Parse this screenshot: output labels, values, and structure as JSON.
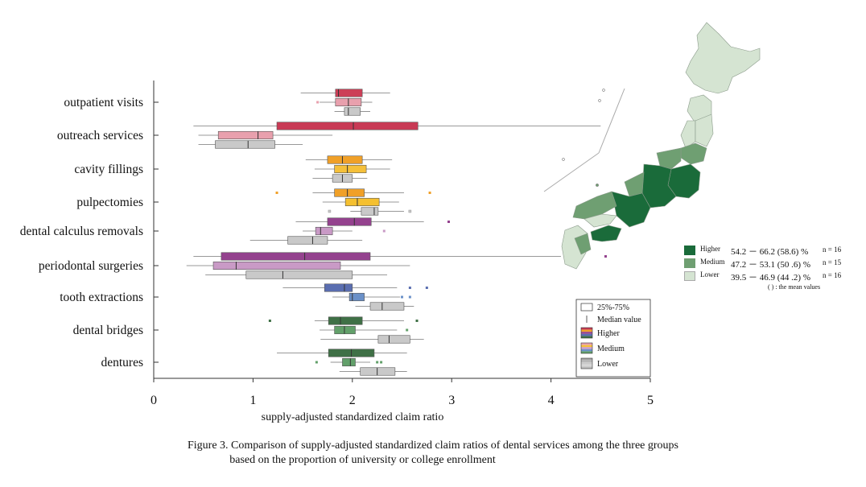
{
  "chart_data": {
    "type": "boxplot",
    "xlabel": "supply-adjusted standardized claim ratio",
    "xlim": [
      0,
      5
    ],
    "xticks": [
      0,
      1,
      2,
      3,
      4,
      5
    ],
    "groups": [
      {
        "name": "Higher"
      },
      {
        "name": "Medium"
      },
      {
        "name": "Lower"
      }
    ],
    "categories": [
      {
        "label": "outpatient visits",
        "colors": [
          "#cc3f57",
          "#e8a0ad",
          "#c9c9c9"
        ],
        "boxes": [
          {
            "wlo": 1.48,
            "q1": 1.83,
            "med": 1.86,
            "q3": 2.1,
            "whi": 2.38,
            "out": []
          },
          {
            "wlo": 1.67,
            "q1": 1.83,
            "med": 1.96,
            "q3": 2.09,
            "whi": 2.2,
            "out": [
              1.65
            ]
          },
          {
            "wlo": 1.82,
            "q1": 1.92,
            "med": 1.96,
            "q3": 2.08,
            "whi": 2.18,
            "out": []
          }
        ]
      },
      {
        "label": "outreach services",
        "colors": [
          "#c83a55",
          "#e8a0ad",
          "#c9c9c9"
        ],
        "boxes": [
          {
            "wlo": 0.4,
            "q1": 1.24,
            "med": 2.01,
            "q3": 2.66,
            "whi": 4.5,
            "out": []
          },
          {
            "wlo": 0.45,
            "q1": 0.65,
            "med": 1.05,
            "q3": 1.2,
            "whi": 1.8,
            "out": []
          },
          {
            "wlo": 0.45,
            "q1": 0.62,
            "med": 0.95,
            "q3": 1.22,
            "whi": 1.5,
            "out": []
          }
        ]
      },
      {
        "label": "cavity fillings",
        "colors": [
          "#f0a028",
          "#f5c03a",
          "#c9c9c9"
        ],
        "boxes": [
          {
            "wlo": 1.53,
            "q1": 1.75,
            "med": 1.9,
            "q3": 2.1,
            "whi": 2.4,
            "out": []
          },
          {
            "wlo": 1.62,
            "q1": 1.82,
            "med": 1.95,
            "q3": 2.14,
            "whi": 2.38,
            "out": []
          },
          {
            "wlo": 1.6,
            "q1": 1.8,
            "med": 1.9,
            "q3": 2.0,
            "whi": 2.15,
            "out": []
          }
        ]
      },
      {
        "label": "pulpectomies",
        "colors": [
          "#f0a028",
          "#f5c030",
          "#c9c9c9"
        ],
        "boxes": [
          {
            "wlo": 1.6,
            "q1": 1.82,
            "med": 1.95,
            "q3": 2.12,
            "whi": 2.52,
            "out": [
              1.24,
              2.78
            ]
          },
          {
            "wlo": 1.7,
            "q1": 1.93,
            "med": 2.05,
            "q3": 2.27,
            "whi": 2.47,
            "out": []
          },
          {
            "wlo": 1.98,
            "q1": 2.09,
            "med": 2.22,
            "q3": 2.26,
            "whi": 2.52,
            "out": [
              1.77,
              2.58
            ]
          }
        ]
      },
      {
        "label": "dental calculus removals",
        "colors": [
          "#94428e",
          "#c99ac6",
          "#c9c9c9"
        ],
        "boxes": [
          {
            "wlo": 1.43,
            "q1": 1.75,
            "med": 2.02,
            "q3": 2.19,
            "whi": 2.72,
            "out": [
              2.97
            ]
          },
          {
            "wlo": 1.5,
            "q1": 1.63,
            "med": 1.68,
            "q3": 1.8,
            "whi": 2.0,
            "out": [
              2.32
            ]
          },
          {
            "wlo": 0.97,
            "q1": 1.35,
            "med": 1.6,
            "q3": 1.75,
            "whi": 2.1,
            "out": []
          }
        ]
      },
      {
        "label": "periodontal surgeries",
        "colors": [
          "#94428e",
          "#c99ac6",
          "#c9c9c9"
        ],
        "boxes": [
          {
            "wlo": 0.4,
            "q1": 0.68,
            "med": 1.52,
            "q3": 2.18,
            "whi": 4.1,
            "out": [
              4.55
            ]
          },
          {
            "wlo": 0.33,
            "q1": 0.6,
            "med": 0.83,
            "q3": 1.88,
            "whi": 2.58,
            "out": []
          },
          {
            "wlo": 0.52,
            "q1": 0.93,
            "med": 1.3,
            "q3": 2.0,
            "whi": 2.35,
            "out": []
          }
        ]
      },
      {
        "label": "tooth extractions",
        "colors": [
          "#5a6eb0",
          "#6a90c8",
          "#c9c9c9"
        ],
        "boxes": [
          {
            "wlo": 1.3,
            "q1": 1.72,
            "med": 1.92,
            "q3": 2.0,
            "whi": 2.45,
            "out": [
              2.58,
              2.75
            ]
          },
          {
            "wlo": 1.8,
            "q1": 1.97,
            "med": 2.0,
            "q3": 2.12,
            "whi": 2.48,
            "out": [
              2.5,
              2.58
            ]
          },
          {
            "wlo": 2.03,
            "q1": 2.18,
            "med": 2.3,
            "q3": 2.52,
            "whi": 2.62,
            "out": []
          }
        ]
      },
      {
        "label": "dental bridges",
        "colors": [
          "#3f7046",
          "#62a06a",
          "#c9c9c9"
        ],
        "boxes": [
          {
            "wlo": 1.62,
            "q1": 1.76,
            "med": 1.88,
            "q3": 2.1,
            "whi": 2.52,
            "out": [
              1.17,
              2.65
            ]
          },
          {
            "wlo": 1.67,
            "q1": 1.82,
            "med": 1.92,
            "q3": 2.03,
            "whi": 2.45,
            "out": [
              2.55
            ]
          },
          {
            "wlo": 1.68,
            "q1": 2.26,
            "med": 2.37,
            "q3": 2.58,
            "whi": 2.72,
            "out": []
          }
        ]
      },
      {
        "label": "dentures",
        "colors": [
          "#3f7046",
          "#62a06a",
          "#c9c9c9"
        ],
        "boxes": [
          {
            "wlo": 1.24,
            "q1": 1.76,
            "med": 1.99,
            "q3": 2.22,
            "whi": 2.55,
            "out": []
          },
          {
            "wlo": 1.78,
            "q1": 1.9,
            "med": 1.98,
            "q3": 2.03,
            "whi": 2.18,
            "out": [
              1.64,
              2.25,
              2.29
            ]
          },
          {
            "wlo": 1.87,
            "q1": 2.08,
            "med": 2.25,
            "q3": 2.43,
            "whi": 2.55,
            "out": []
          }
        ]
      }
    ],
    "legend": {
      "items": [
        {
          "label": "25%-75%",
          "kind": "box"
        },
        {
          "label": "Median value",
          "kind": "median"
        },
        {
          "label": "Higher",
          "kind": "stripes",
          "colors": [
            "#c83a55",
            "#f0a028",
            "#94428e",
            "#5a6eb0",
            "#3f7046"
          ]
        },
        {
          "label": "Medium",
          "kind": "stripes",
          "colors": [
            "#e8a0ad",
            "#f5c03a",
            "#c99ac6",
            "#6a90c8",
            "#62a06a"
          ]
        },
        {
          "label": "Lower",
          "kind": "stripes",
          "colors": [
            "#a8a8a8",
            "#b8b8b8",
            "#c9c9c9",
            "#d6d6d6",
            "#bdbdbd"
          ]
        }
      ],
      "position": "bottom-right"
    }
  },
  "map": {
    "legend": [
      {
        "name": "Higher",
        "color": "#1a6b3a",
        "range": "54.2 － 66.2 (58.6) %",
        "n": "n = 16"
      },
      {
        "name": "Medium",
        "color": "#6f9f72",
        "range": "47.2 － 53.1 (50 .6) %",
        "n": "n = 15"
      },
      {
        "name": "Lower",
        "color": "#d5e4d2",
        "range": "39.5 － 46.9 (44 .2) %",
        "n": "n = 16"
      }
    ],
    "note": "( ) : the mean values",
    "colors": {
      "higher": "#1a6b3a",
      "medium": "#6f9f72",
      "lower": "#d5e4d2",
      "outline": "#8a9a8a"
    }
  },
  "caption": {
    "line1": "Figure 3. Comparison of supply-adjusted standardized claim ratios of dental services among the three groups",
    "line2": "based on the proportion of university or college enrollment"
  }
}
